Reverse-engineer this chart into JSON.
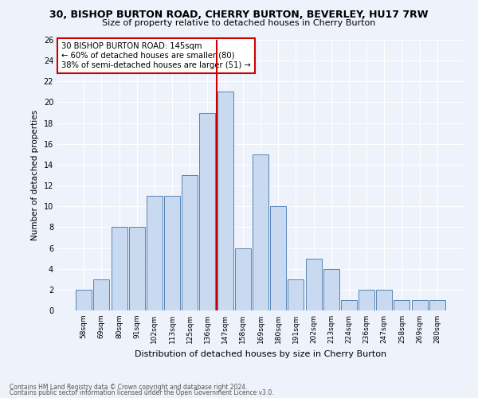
{
  "title": "30, BISHOP BURTON ROAD, CHERRY BURTON, BEVERLEY, HU17 7RW",
  "subtitle": "Size of property relative to detached houses in Cherry Burton",
  "xlabel": "Distribution of detached houses by size in Cherry Burton",
  "ylabel": "Number of detached properties",
  "footnote1": "Contains HM Land Registry data © Crown copyright and database right 2024.",
  "footnote2": "Contains public sector information licensed under the Open Government Licence v3.0.",
  "categories": [
    "58sqm",
    "69sqm",
    "80sqm",
    "91sqm",
    "102sqm",
    "113sqm",
    "125sqm",
    "136sqm",
    "147sqm",
    "158sqm",
    "169sqm",
    "180sqm",
    "191sqm",
    "202sqm",
    "213sqm",
    "224sqm",
    "236sqm",
    "247sqm",
    "258sqm",
    "269sqm",
    "280sqm"
  ],
  "values": [
    2,
    3,
    8,
    8,
    11,
    11,
    13,
    19,
    21,
    6,
    15,
    10,
    3,
    5,
    4,
    1,
    2,
    2,
    1,
    1,
    1
  ],
  "bar_color": "#c9daf0",
  "bar_edge_color": "#5585b5",
  "property_label": "30 BISHOP BURTON ROAD: 145sqm",
  "annotation_line1": "← 60% of detached houses are smaller (80)",
  "annotation_line2": "38% of semi-detached houses are larger (51) →",
  "vline_color": "#cc0000",
  "annotation_box_edge": "#cc0000",
  "background_color": "#eef2fb",
  "ylim": [
    0,
    26
  ],
  "yticks": [
    0,
    2,
    4,
    6,
    8,
    10,
    12,
    14,
    16,
    18,
    20,
    22,
    24,
    26
  ],
  "vline_index": 8.5
}
